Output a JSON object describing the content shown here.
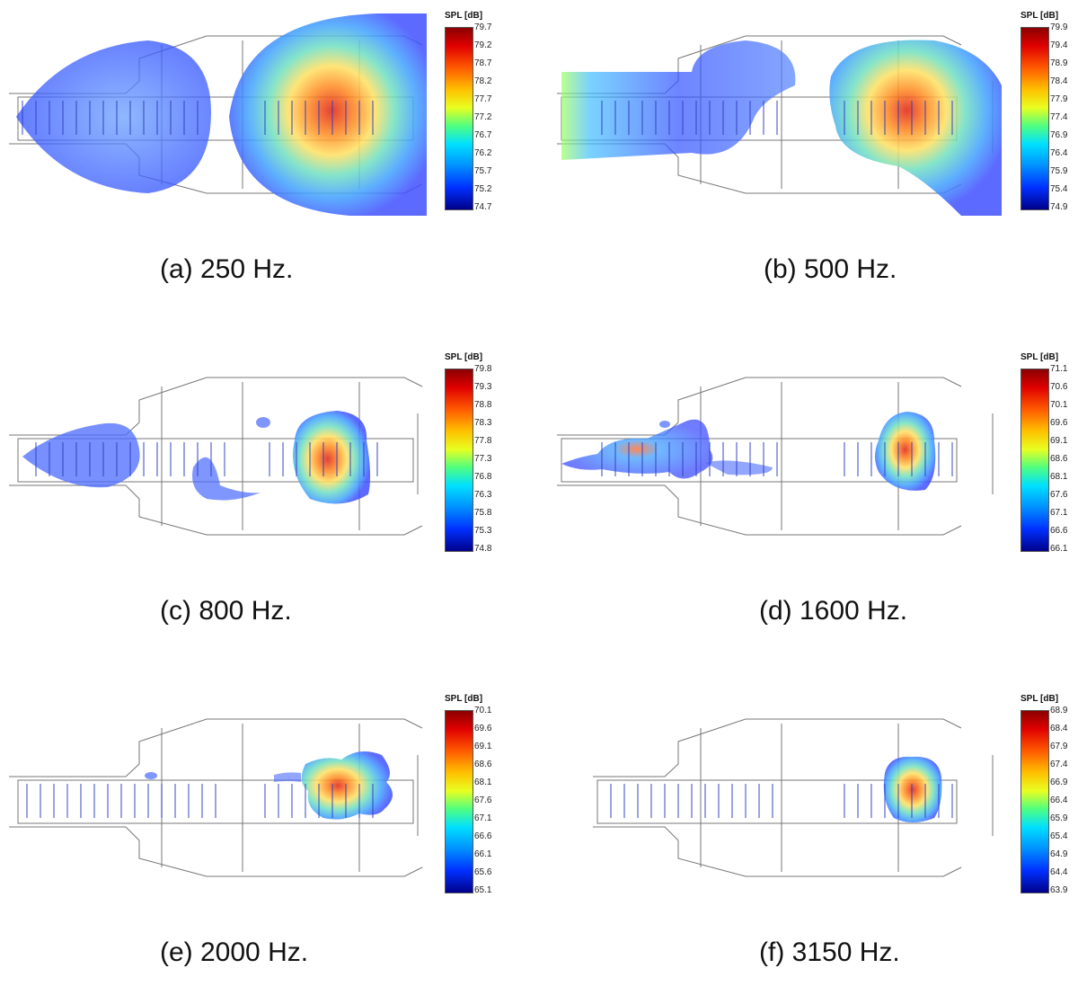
{
  "figure": {
    "panels": [
      {
        "caption": "(a) 250 Hz.",
        "colorbar_title": "SPL [dB]",
        "ticks": [
          "79.7",
          "79.2",
          "78.7",
          "78.2",
          "77.7",
          "77.2",
          "76.7",
          "76.2",
          "75.7",
          "75.2",
          "74.7"
        ]
      },
      {
        "caption": "(b) 500 Hz.",
        "colorbar_title": "SPL [dB]",
        "ticks": [
          "79.9",
          "79.4",
          "78.9",
          "78.4",
          "77.9",
          "77.4",
          "76.9",
          "76.4",
          "75.9",
          "75.4",
          "74.9"
        ]
      },
      {
        "caption": "(c) 800 Hz.",
        "colorbar_title": "SPL [dB]",
        "ticks": [
          "79.8",
          "79.3",
          "78.8",
          "78.3",
          "77.8",
          "77.3",
          "76.8",
          "76.3",
          "75.8",
          "75.3",
          "74.8"
        ]
      },
      {
        "caption": "(d) 1600 Hz.",
        "colorbar_title": "SPL [dB]",
        "ticks": [
          "71.1",
          "70.6",
          "70.1",
          "69.6",
          "69.1",
          "68.6",
          "68.1",
          "67.6",
          "67.1",
          "66.6",
          "66.1"
        ]
      },
      {
        "caption": "(e) 2000 Hz.",
        "colorbar_title": "SPL [dB]",
        "ticks": [
          "70.1",
          "69.6",
          "69.1",
          "68.6",
          "68.1",
          "67.6",
          "67.1",
          "66.6",
          "66.1",
          "65.6",
          "65.1"
        ]
      },
      {
        "caption": "(f) 3150 Hz.",
        "colorbar_title": "SPL [dB]",
        "ticks": [
          "68.9",
          "68.4",
          "67.9",
          "67.4",
          "66.9",
          "66.4",
          "65.9",
          "65.4",
          "64.9",
          "64.4",
          "63.9"
        ]
      }
    ]
  },
  "colors": {
    "outline": "#7a7a7a",
    "cmap_low": "#00008a",
    "cmap_high": "#8a0000"
  }
}
